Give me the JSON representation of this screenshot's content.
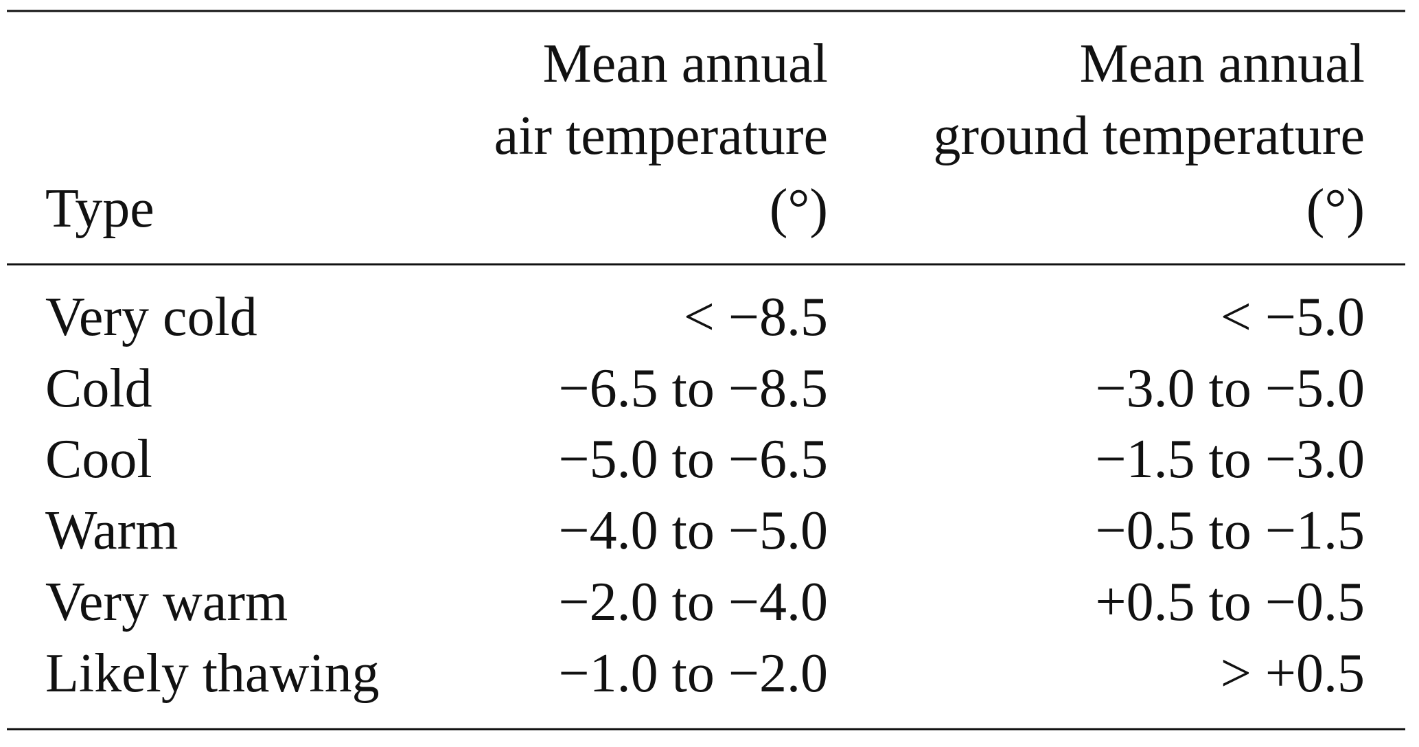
{
  "table": {
    "header": {
      "type": "Type",
      "air": [
        "Mean annual",
        "air temperature",
        "(°)"
      ],
      "ground": [
        "Mean annual",
        "ground temperature",
        "(°)"
      ]
    },
    "rows": [
      [
        "Very cold",
        "< −8.5",
        "< −5.0"
      ],
      [
        "Cold",
        "−6.5 to −8.5",
        "−3.0 to −5.0"
      ],
      [
        "Cool",
        "−5.0 to −6.5",
        "−1.5 to −3.0"
      ],
      [
        "Warm",
        "−4.0 to −5.0",
        "−0.5 to −1.5"
      ],
      [
        "Very warm",
        "−2.0 to −4.0",
        "+0.5 to −0.5"
      ],
      [
        "Likely thawing",
        "−1.0 to −2.0",
        "> +0.5"
      ]
    ]
  }
}
